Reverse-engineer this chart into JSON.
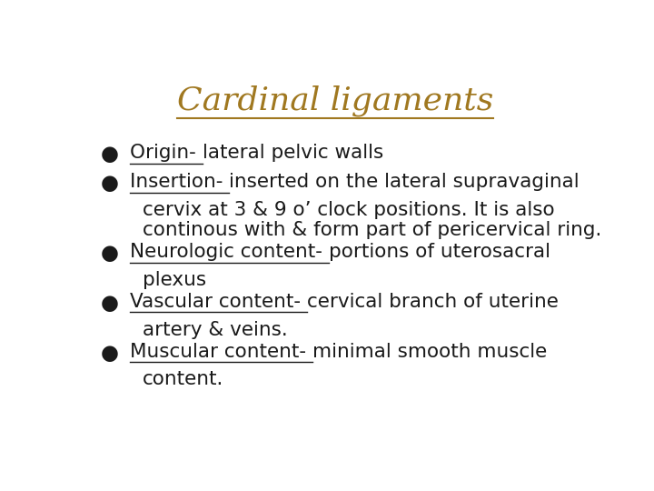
{
  "title": "Cardinal ligaments",
  "title_color": "#A07820",
  "title_fontsize": 26,
  "title_style": "italic",
  "title_family": "serif",
  "background_color": "#ffffff",
  "text_color": "#1a1a1a",
  "bullet_color": "#1a1a1a",
  "body_fontsize": 15.5,
  "body_family": "sans-serif",
  "bullets": [
    {
      "underlined": "Origin- ",
      "normal": "lateral pelvic walls"
    },
    {
      "underlined": "Insertion- ",
      "normal": "inserted on the lateral supravaginal\ncervix at 3 & 9 o’ clock positions. It is also\ncontinous with & form part of pericervical ring."
    },
    {
      "underlined": "Neurologic content- ",
      "normal": "portions of uterosacral\nplexus"
    },
    {
      "underlined": "Vascular content- ",
      "normal": "cervical branch of uterine\nartery & veins."
    },
    {
      "underlined": "Muscular content- ",
      "normal": "minimal smooth muscle\ncontent."
    }
  ]
}
